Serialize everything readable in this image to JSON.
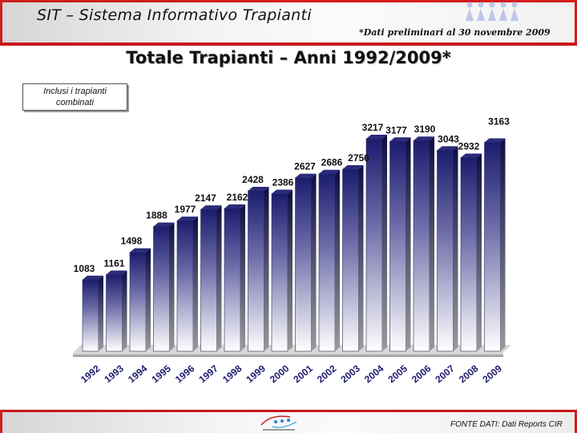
{
  "header": {
    "app_title": "SIT – Sistema Informativo Trapianti",
    "prelim_note": "*Dati preliminari al 30 novembre 2009"
  },
  "note_box": {
    "line1": "Inclusi i trapianti",
    "line2": "combinati"
  },
  "footer": {
    "source": "FONTE DATI: Dati Reports CIR"
  },
  "colors": {
    "header_red": "#c8171c",
    "bar_dark": "#1c1c6e",
    "bar_light": "#ffffff"
  },
  "icons": [
    "people-logo-icon",
    "cnt-logo-icon"
  ],
  "chart_data": {
    "type": "bar",
    "title": "Totale Trapianti – Anni 1992/2009*",
    "categories": [
      "1992",
      "1993",
      "1994",
      "1995",
      "1996",
      "1997",
      "1998",
      "1999",
      "2000",
      "2001",
      "2002",
      "2003",
      "2004",
      "2005",
      "2006",
      "2007",
      "2008",
      "2009"
    ],
    "values": [
      1083,
      1161,
      1498,
      1888,
      1977,
      2147,
      2162,
      2428,
      2386,
      2627,
      2686,
      2756,
      3217,
      3177,
      3190,
      3043,
      2932,
      3163
    ],
    "ylim": [
      0,
      3300
    ],
    "grid": false,
    "legend": "none",
    "xlabel": "",
    "ylabel": ""
  }
}
